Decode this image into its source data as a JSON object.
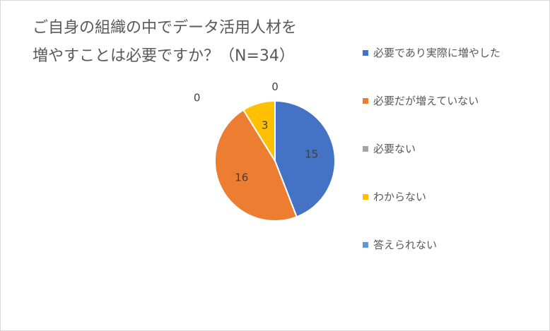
{
  "chart_data": {
    "type": "pie",
    "title_lines": [
      "ご自身の組織の中でデータ活用人材を",
      "増やすことは必要ですか？（N=34）"
    ],
    "categories": [
      "必要であり実際に増やした",
      "必要だが増えていない",
      "必要ない",
      "わからない",
      "答えられない"
    ],
    "values": [
      15,
      16,
      0,
      3,
      0
    ],
    "colors": [
      "#4472c4",
      "#ed7d31",
      "#a5a5a5",
      "#ffc000",
      "#5b9bd5"
    ],
    "legend_position": "right",
    "data_labels": [
      "15",
      "16",
      "0",
      "3",
      "0"
    ]
  }
}
